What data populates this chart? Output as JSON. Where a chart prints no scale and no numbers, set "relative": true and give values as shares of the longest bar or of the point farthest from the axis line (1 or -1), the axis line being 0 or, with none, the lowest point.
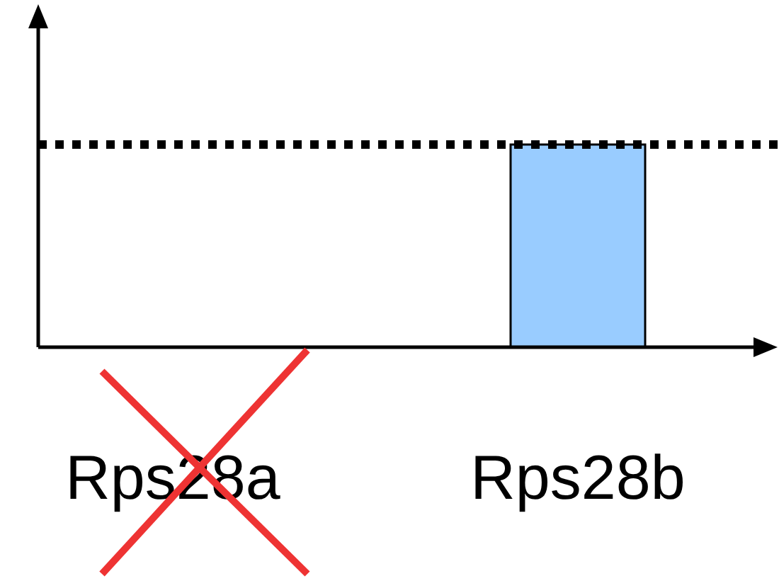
{
  "chart_data": {
    "type": "bar",
    "relative": true,
    "categories": [
      "Rps28a",
      "Rps28b"
    ],
    "values": [
      0,
      1
    ],
    "color": "#99ccff",
    "ref_lines": [
      {
        "axis": "y",
        "value": 1,
        "line_style": "dotted",
        "color": "#000000"
      }
    ]
  }
}
